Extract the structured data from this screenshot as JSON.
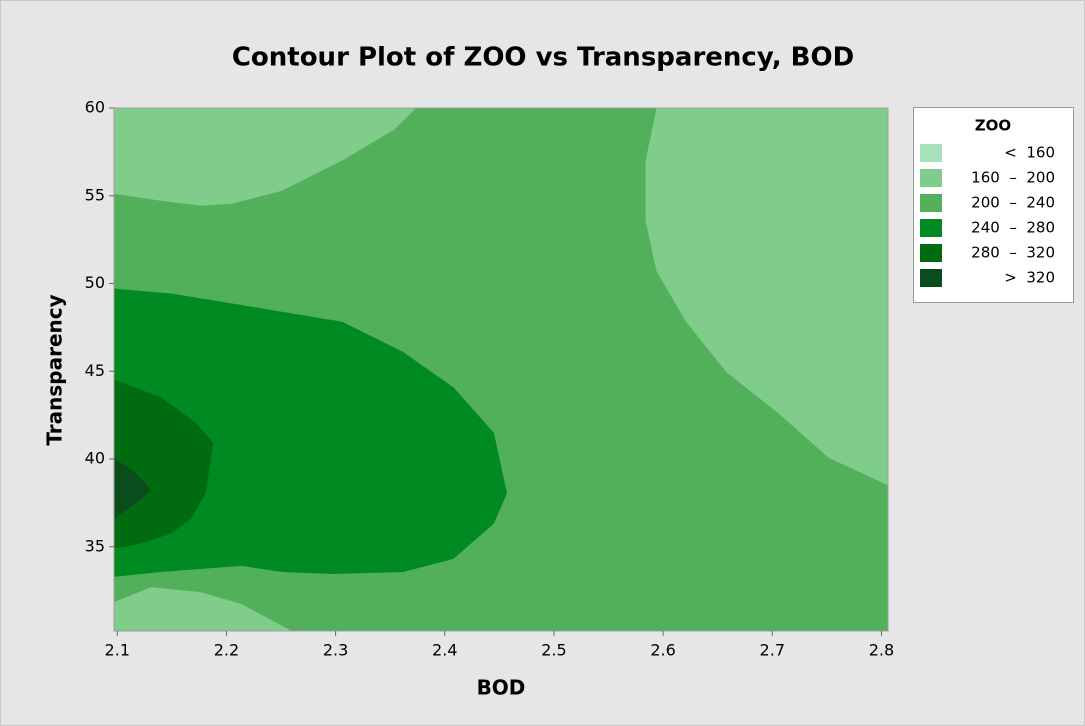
{
  "chart_data": {
    "type": "contour",
    "title": "Contour Plot of ZOO vs Transparency, BOD",
    "x_label": "BOD",
    "y_label": "Transparency",
    "xlim": [
      2.097,
      2.806
    ],
    "ylim": [
      30.2,
      60
    ],
    "xticks": [
      2.1,
      2.2,
      2.3,
      2.4,
      2.5,
      2.6,
      2.7,
      2.8
    ],
    "yticks": [
      35,
      40,
      45,
      50,
      55,
      60
    ],
    "legend_title": "ZOO",
    "legend_position": "right",
    "levels": [
      {
        "label": "<  160",
        "color": "#a6e2bb"
      },
      {
        "label": "160  –  200",
        "color": "#80cc8b"
      },
      {
        "label": "200  –  240",
        "color": "#52b05b"
      },
      {
        "label": "240  –  280",
        "color": "#008a22"
      },
      {
        "label": "280  –  320",
        "color": "#006b10"
      },
      {
        "label": ">  320",
        "color": "#0b4c1c"
      }
    ],
    "background_level": 2,
    "regions": [
      {
        "level": 1,
        "points": [
          [
            2.097,
            60
          ],
          [
            2.374,
            60
          ],
          [
            2.353,
            58.74
          ],
          [
            2.306,
            57.01
          ],
          [
            2.251,
            55.29
          ],
          [
            2.205,
            54.54
          ],
          [
            2.177,
            54.43
          ],
          [
            2.14,
            54.71
          ],
          [
            2.097,
            55.11
          ]
        ]
      },
      {
        "level": 1,
        "points": [
          [
            2.594,
            60
          ],
          [
            2.806,
            60
          ],
          [
            2.806,
            38.51
          ],
          [
            2.752,
            40.06
          ],
          [
            2.705,
            42.64
          ],
          [
            2.658,
            44.94
          ],
          [
            2.621,
            47.82
          ],
          [
            2.594,
            50.69
          ],
          [
            2.584,
            53.56
          ],
          [
            2.584,
            57.01
          ]
        ]
      },
      {
        "level": 1,
        "points": [
          [
            2.097,
            31.84
          ],
          [
            2.131,
            32.7
          ],
          [
            2.177,
            32.41
          ],
          [
            2.214,
            31.72
          ],
          [
            2.26,
            30.2
          ],
          [
            2.097,
            30.2
          ]
        ]
      },
      {
        "level": 3,
        "points": [
          [
            2.097,
            49.71
          ],
          [
            2.149,
            49.43
          ],
          [
            2.195,
            48.97
          ],
          [
            2.251,
            48.39
          ],
          [
            2.306,
            47.82
          ],
          [
            2.362,
            46.09
          ],
          [
            2.408,
            44.08
          ],
          [
            2.445,
            41.49
          ],
          [
            2.457,
            38.05
          ],
          [
            2.445,
            36.32
          ],
          [
            2.408,
            34.31
          ],
          [
            2.362,
            33.56
          ],
          [
            2.297,
            33.45
          ],
          [
            2.251,
            33.56
          ],
          [
            2.214,
            33.91
          ],
          [
            2.177,
            33.74
          ],
          [
            2.14,
            33.56
          ],
          [
            2.097,
            33.28
          ]
        ]
      },
      {
        "level": 4,
        "points": [
          [
            2.097,
            44.54
          ],
          [
            2.14,
            43.51
          ],
          [
            2.172,
            42.07
          ],
          [
            2.188,
            40.92
          ],
          [
            2.181,
            38.05
          ],
          [
            2.168,
            36.61
          ],
          [
            2.149,
            35.75
          ],
          [
            2.121,
            35.17
          ],
          [
            2.097,
            34.89
          ]
        ]
      },
      {
        "level": 5,
        "points": [
          [
            2.097,
            40.06
          ],
          [
            2.117,
            39.2
          ],
          [
            2.131,
            38.22
          ],
          [
            2.117,
            37.47
          ],
          [
            2.097,
            36.61
          ]
        ]
      }
    ]
  }
}
